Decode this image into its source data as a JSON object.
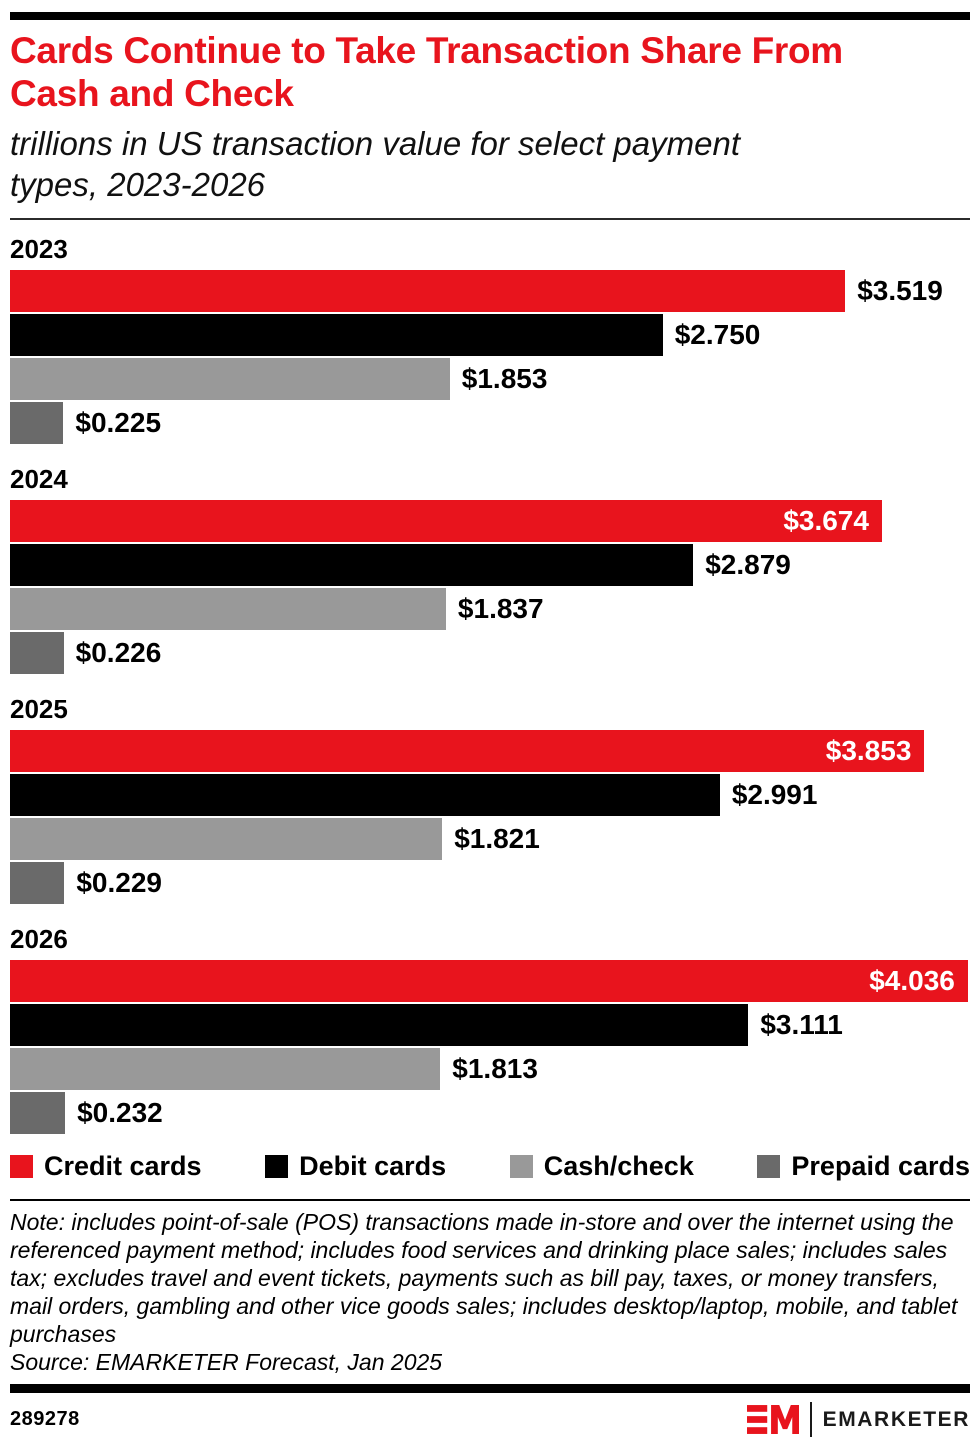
{
  "header": {
    "title": "Cards Continue to Take Transaction Share From Cash and Check",
    "subtitle": "trillions in US transaction value for select payment types, 2023-2026"
  },
  "colors": {
    "red": "#E8141D",
    "black": "#000000",
    "gray": "#999999",
    "dark_gray": "#6A6A6A"
  },
  "chart_data": {
    "type": "bar",
    "orientation": "horizontal",
    "title": "Cards Continue to Take Transaction Share From Cash and Check",
    "subtitle": "trillions in US transaction value for select payment types, 2023-2026",
    "unit": "trillions of US dollars",
    "x_max": 4.045,
    "grid": false,
    "axes_shown": false,
    "legend_position": "bottom",
    "categories": [
      "2023",
      "2024",
      "2025",
      "2026"
    ],
    "series": [
      {
        "name": "Credit cards",
        "color_key": "red",
        "values": [
          3.519,
          3.674,
          3.853,
          4.036
        ],
        "labels": [
          "$3.519",
          "$3.674",
          "$3.853",
          "$4.036"
        ]
      },
      {
        "name": "Debit cards",
        "color_key": "black",
        "values": [
          2.75,
          2.879,
          2.991,
          3.111
        ],
        "labels": [
          "$2.750",
          "$2.879",
          "$2.991",
          "$3.111"
        ]
      },
      {
        "name": "Cash/check",
        "color_key": "gray",
        "values": [
          1.853,
          1.837,
          1.821,
          1.813
        ],
        "labels": [
          "$1.853",
          "$1.837",
          "$1.821",
          "$1.813"
        ]
      },
      {
        "name": "Prepaid cards",
        "color_key": "dark_gray",
        "values": [
          0.225,
          0.226,
          0.229,
          0.232
        ],
        "labels": [
          "$0.225",
          "$0.226",
          "$0.229",
          "$0.232"
        ]
      }
    ]
  },
  "footer": {
    "note": "Note: includes point-of-sale (POS) transactions made in-store and over the internet using the referenced payment method; includes food services and drinking place sales; includes sales tax; excludes travel and event tickets, payments such as bill pay, taxes, or money transfers, mail orders, gambling and other vice goods sales; includes desktop/laptop, mobile, and tablet purchases",
    "source": "Source: EMARKETER Forecast, Jan 2025",
    "chart_id": "289278",
    "brand": "EMARKETER"
  }
}
